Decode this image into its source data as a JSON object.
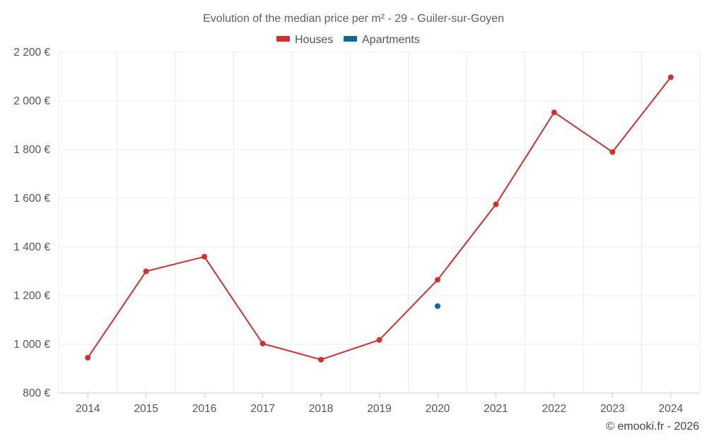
{
  "chart_data": {
    "type": "line",
    "title": "Evolution of the median price per m² - 29 - Guiler-sur-Goyen",
    "x": [
      "2014",
      "2015",
      "2016",
      "2017",
      "2018",
      "2019",
      "2020",
      "2021",
      "2022",
      "2023",
      "2024"
    ],
    "y_ticks": [
      "800 €",
      "1 000 €",
      "1 200 €",
      "1 400 €",
      "1 600 €",
      "1 800 €",
      "2 000 €",
      "2 200 €"
    ],
    "y_tick_values": [
      800,
      1000,
      1200,
      1400,
      1600,
      1800,
      2000,
      2200
    ],
    "ylim": [
      800,
      2200
    ],
    "xlabel": "",
    "ylabel": "",
    "grid": true,
    "legend_position": "top-center",
    "series": [
      {
        "name": "Houses",
        "color": "#d32f2f",
        "values": [
          945,
          1300,
          1360,
          1003,
          937,
          1018,
          1265,
          1575,
          1953,
          1790,
          2097
        ]
      },
      {
        "name": "Apartments",
        "color": "#0e6a9a",
        "values": [
          null,
          null,
          null,
          null,
          null,
          null,
          1157,
          null,
          null,
          null,
          null
        ]
      }
    ]
  },
  "credit": "© emooki.fr - 2026"
}
